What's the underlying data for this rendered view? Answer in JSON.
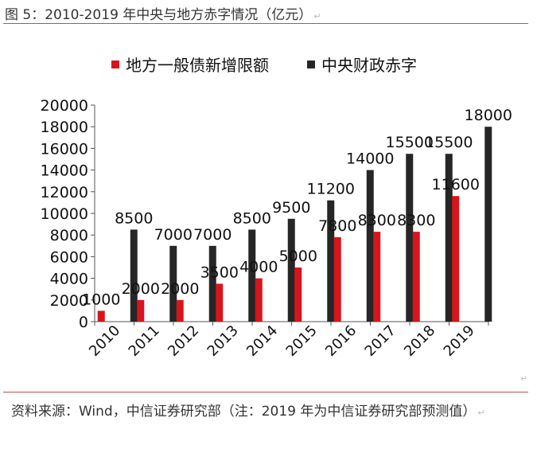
{
  "figure": {
    "title": "图 5：2010-2019 年中央与地方赤字情况（亿元）",
    "source": "资料来源：Wind，中信证券研究部（注：2019 年为中信证券研究部预测值）",
    "paragraph_mark": "↵"
  },
  "chart_data": {
    "type": "bar",
    "title": "",
    "xlabel": "",
    "ylabel": "",
    "ylim": [
      0,
      20000
    ],
    "yticks": [
      0,
      2000,
      4000,
      6000,
      8000,
      10000,
      12000,
      14000,
      16000,
      18000,
      20000
    ],
    "categories": [
      "2010",
      "2011",
      "2012",
      "2013",
      "2014",
      "2015",
      "2016",
      "2017",
      "2018",
      "2019"
    ],
    "legend_position": "top",
    "grid": false,
    "series": [
      {
        "name": "地方一般债新增限额",
        "color": "#d7151c",
        "values": [
          1000,
          2000,
          2000,
          3500,
          4000,
          5000,
          7800,
          8300,
          8300,
          11600
        ]
      },
      {
        "name": "中央财政赤字",
        "color": "#262626",
        "values": [
          8500,
          7000,
          7000,
          8500,
          9500,
          11200,
          14000,
          15500,
          15500,
          18000
        ]
      }
    ]
  }
}
